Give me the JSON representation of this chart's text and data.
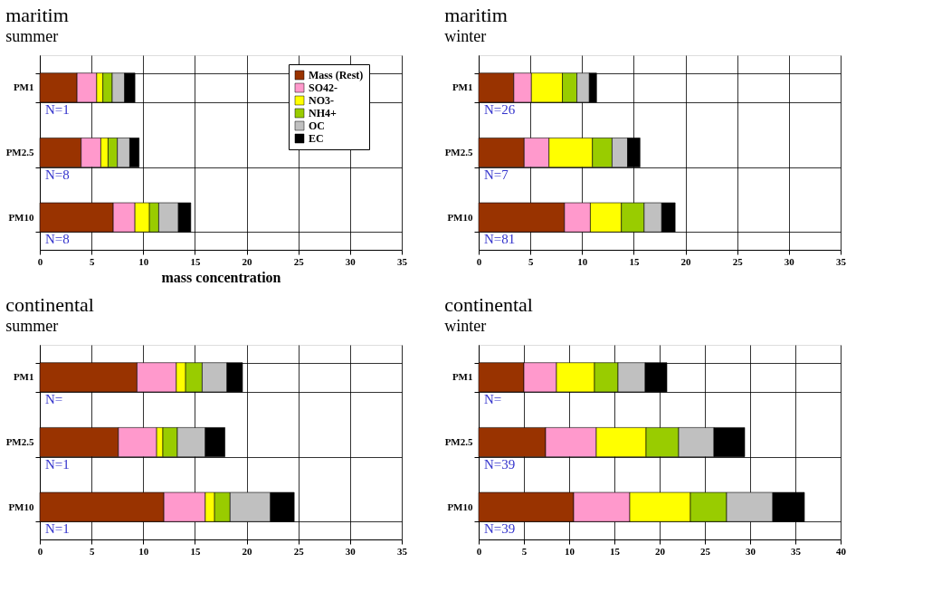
{
  "chart_data": [
    {
      "type": "bar",
      "orientation": "horizontal",
      "stacked": true,
      "title": "maritim",
      "subtitle": "summer",
      "xlabel": "mass concentration",
      "categories": [
        "PM1",
        "PM2.5",
        "PM10"
      ],
      "xlim": [
        0,
        35
      ],
      "xticks": [
        0,
        5,
        10,
        15,
        20,
        25,
        30,
        35
      ],
      "grid": true,
      "legend": "top right",
      "annotations": [
        "N=1",
        "N=8",
        "N=8"
      ],
      "series": [
        {
          "name": "Mass (Rest)",
          "color": "#993300",
          "values": [
            3.6,
            4.0,
            7.1
          ]
        },
        {
          "name": "SO42-",
          "color": "#ff99cc",
          "values": [
            1.9,
            1.9,
            2.1
          ]
        },
        {
          "name": "NO3-",
          "color": "#ffff00",
          "values": [
            0.6,
            0.7,
            1.4
          ]
        },
        {
          "name": "NH4+",
          "color": "#99cc00",
          "values": [
            0.9,
            0.9,
            0.9
          ]
        },
        {
          "name": "OC",
          "color": "#c0c0c0",
          "values": [
            1.2,
            1.2,
            1.9
          ]
        },
        {
          "name": "EC",
          "color": "#000000",
          "values": [
            1.0,
            0.9,
            1.2
          ]
        }
      ]
    },
    {
      "type": "bar",
      "orientation": "horizontal",
      "stacked": true,
      "title": "maritim",
      "subtitle": "winter",
      "categories": [
        "PM1",
        "PM2.5",
        "PM10"
      ],
      "xlim": [
        0,
        35
      ],
      "xticks": [
        0,
        5,
        10,
        15,
        20,
        25,
        30,
        35
      ],
      "grid": true,
      "annotations": [
        "N=26",
        "N=7",
        "N=81"
      ],
      "series": [
        {
          "color": "#993300",
          "values": [
            3.4,
            4.4,
            8.3
          ]
        },
        {
          "color": "#ff99cc",
          "values": [
            1.7,
            2.4,
            2.5
          ]
        },
        {
          "color": "#ffff00",
          "values": [
            3.0,
            4.2,
            3.0
          ]
        },
        {
          "color": "#99cc00",
          "values": [
            1.4,
            1.9,
            2.2
          ]
        },
        {
          "color": "#c0c0c0",
          "values": [
            1.2,
            1.5,
            1.7
          ]
        },
        {
          "color": "#000000",
          "values": [
            0.7,
            1.2,
            1.3
          ]
        }
      ]
    },
    {
      "type": "bar",
      "orientation": "horizontal",
      "stacked": true,
      "title": "continental",
      "subtitle": "summer",
      "categories": [
        "PM1",
        "PM2.5",
        "PM10"
      ],
      "xlim": [
        0,
        35
      ],
      "xticks": [
        0,
        5,
        10,
        15,
        20,
        25,
        30,
        35
      ],
      "grid": true,
      "annotations": [
        "N=",
        "N=1",
        "N=1"
      ],
      "series": [
        {
          "color": "#993300",
          "values": [
            9.4,
            7.6,
            12.0
          ]
        },
        {
          "color": "#ff99cc",
          "values": [
            3.8,
            3.7,
            4.0
          ]
        },
        {
          "color": "#ffff00",
          "values": [
            0.9,
            0.6,
            0.9
          ]
        },
        {
          "color": "#99cc00",
          "values": [
            1.6,
            1.4,
            1.5
          ]
        },
        {
          "color": "#c0c0c0",
          "values": [
            2.4,
            2.7,
            3.9
          ]
        },
        {
          "color": "#000000",
          "values": [
            1.5,
            1.9,
            2.3
          ]
        }
      ]
    },
    {
      "type": "bar",
      "orientation": "horizontal",
      "stacked": true,
      "title": "continental",
      "subtitle": "winter",
      "categories": [
        "PM1",
        "PM2.5",
        "PM10"
      ],
      "xlim": [
        0,
        40
      ],
      "xticks": [
        0,
        5,
        10,
        15,
        20,
        25,
        30,
        35,
        40
      ],
      "grid": true,
      "annotations": [
        "N=",
        "N=39",
        "N=39"
      ],
      "series": [
        {
          "color": "#993300",
          "values": [
            5.0,
            7.4,
            10.5
          ]
        },
        {
          "color": "#ff99cc",
          "values": [
            3.6,
            5.6,
            6.2
          ]
        },
        {
          "color": "#ffff00",
          "values": [
            4.2,
            5.5,
            6.7
          ]
        },
        {
          "color": "#99cc00",
          "values": [
            2.6,
            3.6,
            4.0
          ]
        },
        {
          "color": "#c0c0c0",
          "values": [
            3.0,
            3.9,
            5.1
          ]
        },
        {
          "color": "#000000",
          "values": [
            2.4,
            3.4,
            3.5
          ]
        }
      ]
    }
  ]
}
